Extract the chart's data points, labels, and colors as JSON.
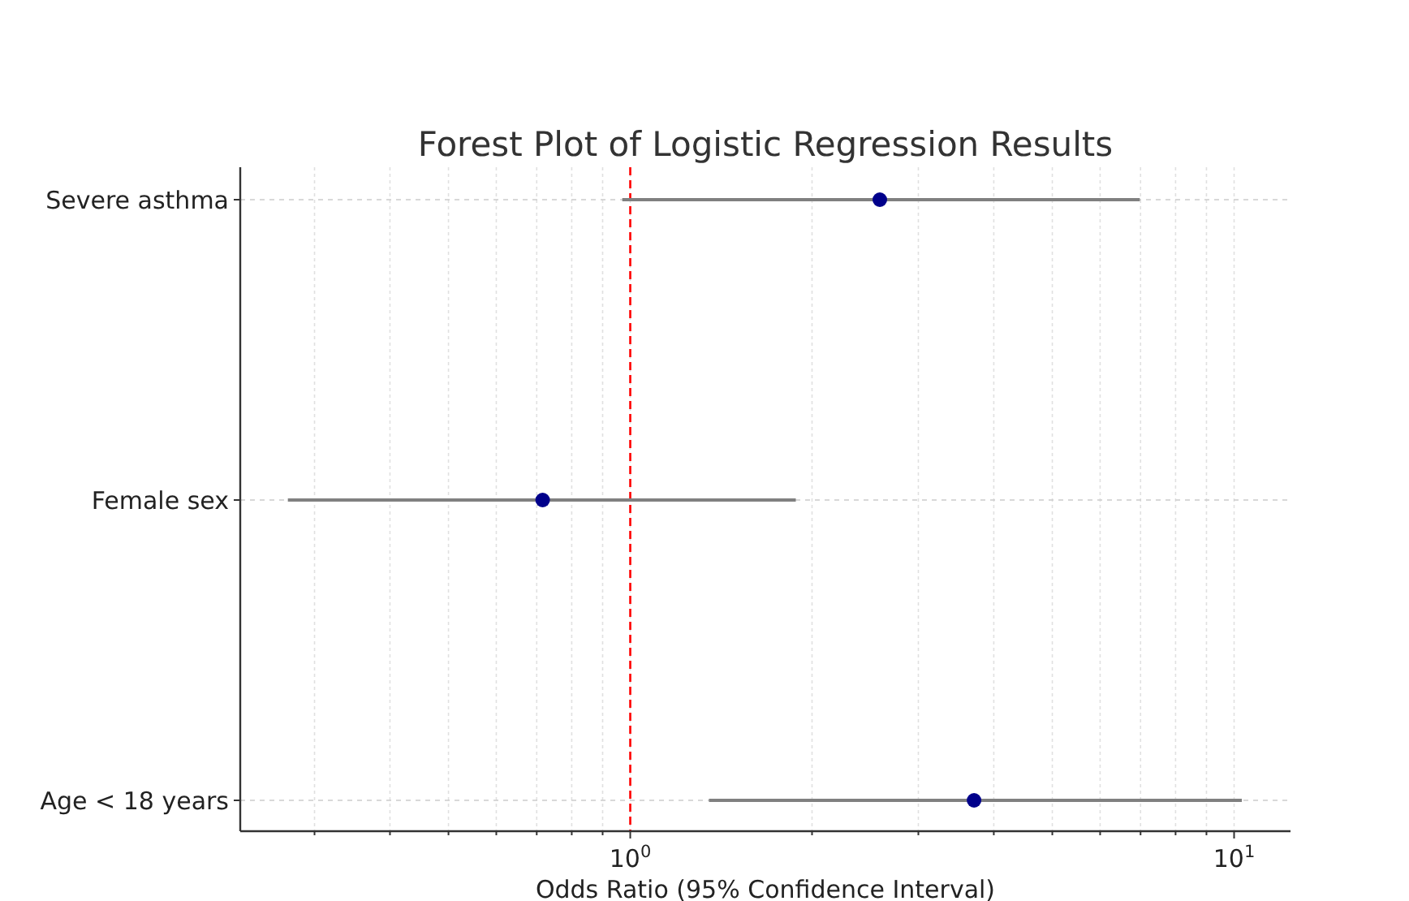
{
  "chart_data": {
    "type": "scatter",
    "orientation": "horizontal",
    "title": "Forest Plot of Logistic Regression Results",
    "xlabel": "Odds Ratio (95% Confidence Interval)",
    "categories": [
      "Severe asthma",
      "Female sex",
      "Age < 18 years"
    ],
    "values": [
      2.59,
      0.716,
      3.71
    ],
    "errors": [
      [
        0.97,
        6.98
      ],
      [
        0.271,
        1.88
      ],
      [
        1.35,
        10.3
      ]
    ],
    "color": "#00008b",
    "marker": "circle",
    "log": "x",
    "grid": true,
    "xlim": [
      0.226,
      12.4
    ],
    "xticks": [
      {
        "value": 0.3,
        "label": null
      },
      {
        "value": 0.4,
        "label": null
      },
      {
        "value": 0.5,
        "label": null
      },
      {
        "value": 0.6,
        "label": null
      },
      {
        "value": 0.7,
        "label": null
      },
      {
        "value": 0.8,
        "label": null
      },
      {
        "value": 0.9,
        "label": null
      },
      {
        "value": 1,
        "label": "10$^{0}$"
      },
      {
        "value": 2,
        "label": null
      },
      {
        "value": 3,
        "label": null
      },
      {
        "value": 4,
        "label": null
      },
      {
        "value": 5,
        "label": null
      },
      {
        "value": 6,
        "label": null
      },
      {
        "value": 7,
        "label": null
      },
      {
        "value": 8,
        "label": null
      },
      {
        "value": 9,
        "label": null
      },
      {
        "value": 10,
        "label": "10$^{1}$"
      }
    ],
    "ref_lines": [
      {
        "axis": "x",
        "value": 1,
        "label": null,
        "color": "#ff0000",
        "line_style": "dashed"
      }
    ]
  }
}
